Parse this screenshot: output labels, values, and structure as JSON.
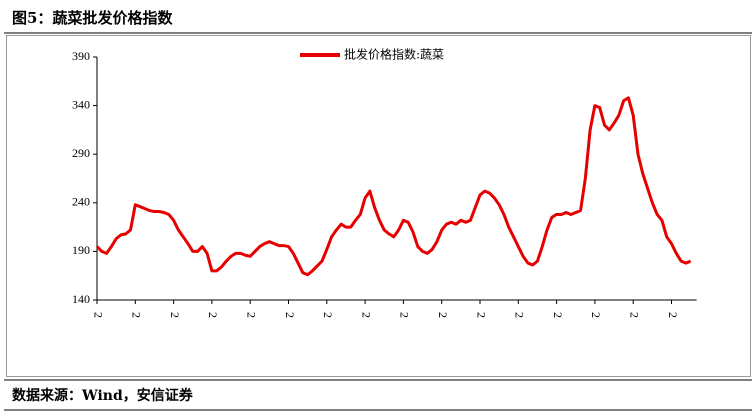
{
  "chart_data": {
    "type": "line",
    "title": "图5：蔬菜批发价格指数",
    "source": "数据来源：Wind，安信证券",
    "categories": [
      "2",
      null,
      null,
      null,
      null,
      null,
      null,
      null,
      "2",
      null,
      null,
      null,
      null,
      null,
      null,
      null,
      "2",
      null,
      null,
      null,
      null,
      null,
      null,
      null,
      "2",
      null,
      null,
      null,
      null,
      null,
      null,
      null,
      "2",
      null,
      null,
      null,
      null,
      null,
      null,
      null,
      "2",
      null,
      null,
      null,
      null,
      null,
      null,
      null,
      "2",
      null,
      null,
      null,
      null,
      null,
      null,
      null,
      "2",
      null,
      null,
      null,
      null,
      null,
      null,
      null,
      "2",
      null,
      null,
      null,
      null,
      null,
      null,
      null,
      "2",
      null,
      null,
      null,
      null,
      null,
      null,
      null,
      "2",
      null,
      null,
      null,
      null,
      null,
      null,
      null,
      "2",
      null,
      null,
      null,
      null,
      null,
      null,
      null,
      "2",
      null,
      null,
      null,
      null,
      null,
      null,
      null,
      "2",
      null,
      null,
      null,
      null,
      null,
      null,
      null,
      "2",
      null,
      null,
      null,
      null,
      null,
      null,
      null,
      "2",
      null,
      null,
      null,
      null
    ],
    "series": [
      {
        "name": "批发价格指数:蔬菜",
        "color": "#e60000",
        "values": [
          195,
          190,
          188,
          195,
          203,
          207,
          208,
          212,
          238,
          236,
          234,
          232,
          231,
          231,
          230,
          228,
          222,
          212,
          205,
          198,
          190,
          190,
          195,
          188,
          170,
          170,
          174,
          180,
          185,
          188,
          188,
          186,
          185,
          190,
          195,
          198,
          200,
          198,
          196,
          196,
          195,
          188,
          178,
          168,
          166,
          170,
          175,
          180,
          192,
          205,
          212,
          218,
          215,
          215,
          222,
          228,
          245,
          252,
          235,
          222,
          212,
          208,
          205,
          212,
          222,
          220,
          210,
          195,
          190,
          188,
          192,
          200,
          212,
          218,
          220,
          218,
          222,
          220,
          222,
          235,
          248,
          252,
          250,
          245,
          238,
          228,
          215,
          205,
          195,
          185,
          178,
          176,
          180,
          195,
          212,
          225,
          228,
          228,
          230,
          228,
          230,
          232,
          265,
          315,
          340,
          338,
          320,
          315,
          322,
          330,
          345,
          348,
          330,
          290,
          270,
          255,
          240,
          228,
          222,
          205,
          198,
          188,
          180,
          178,
          180
        ]
      }
    ],
    "ylim": [
      140,
      390
    ],
    "yticks": [
      140,
      190,
      240,
      290,
      340,
      390
    ],
    "grid": false,
    "legend": "top"
  }
}
